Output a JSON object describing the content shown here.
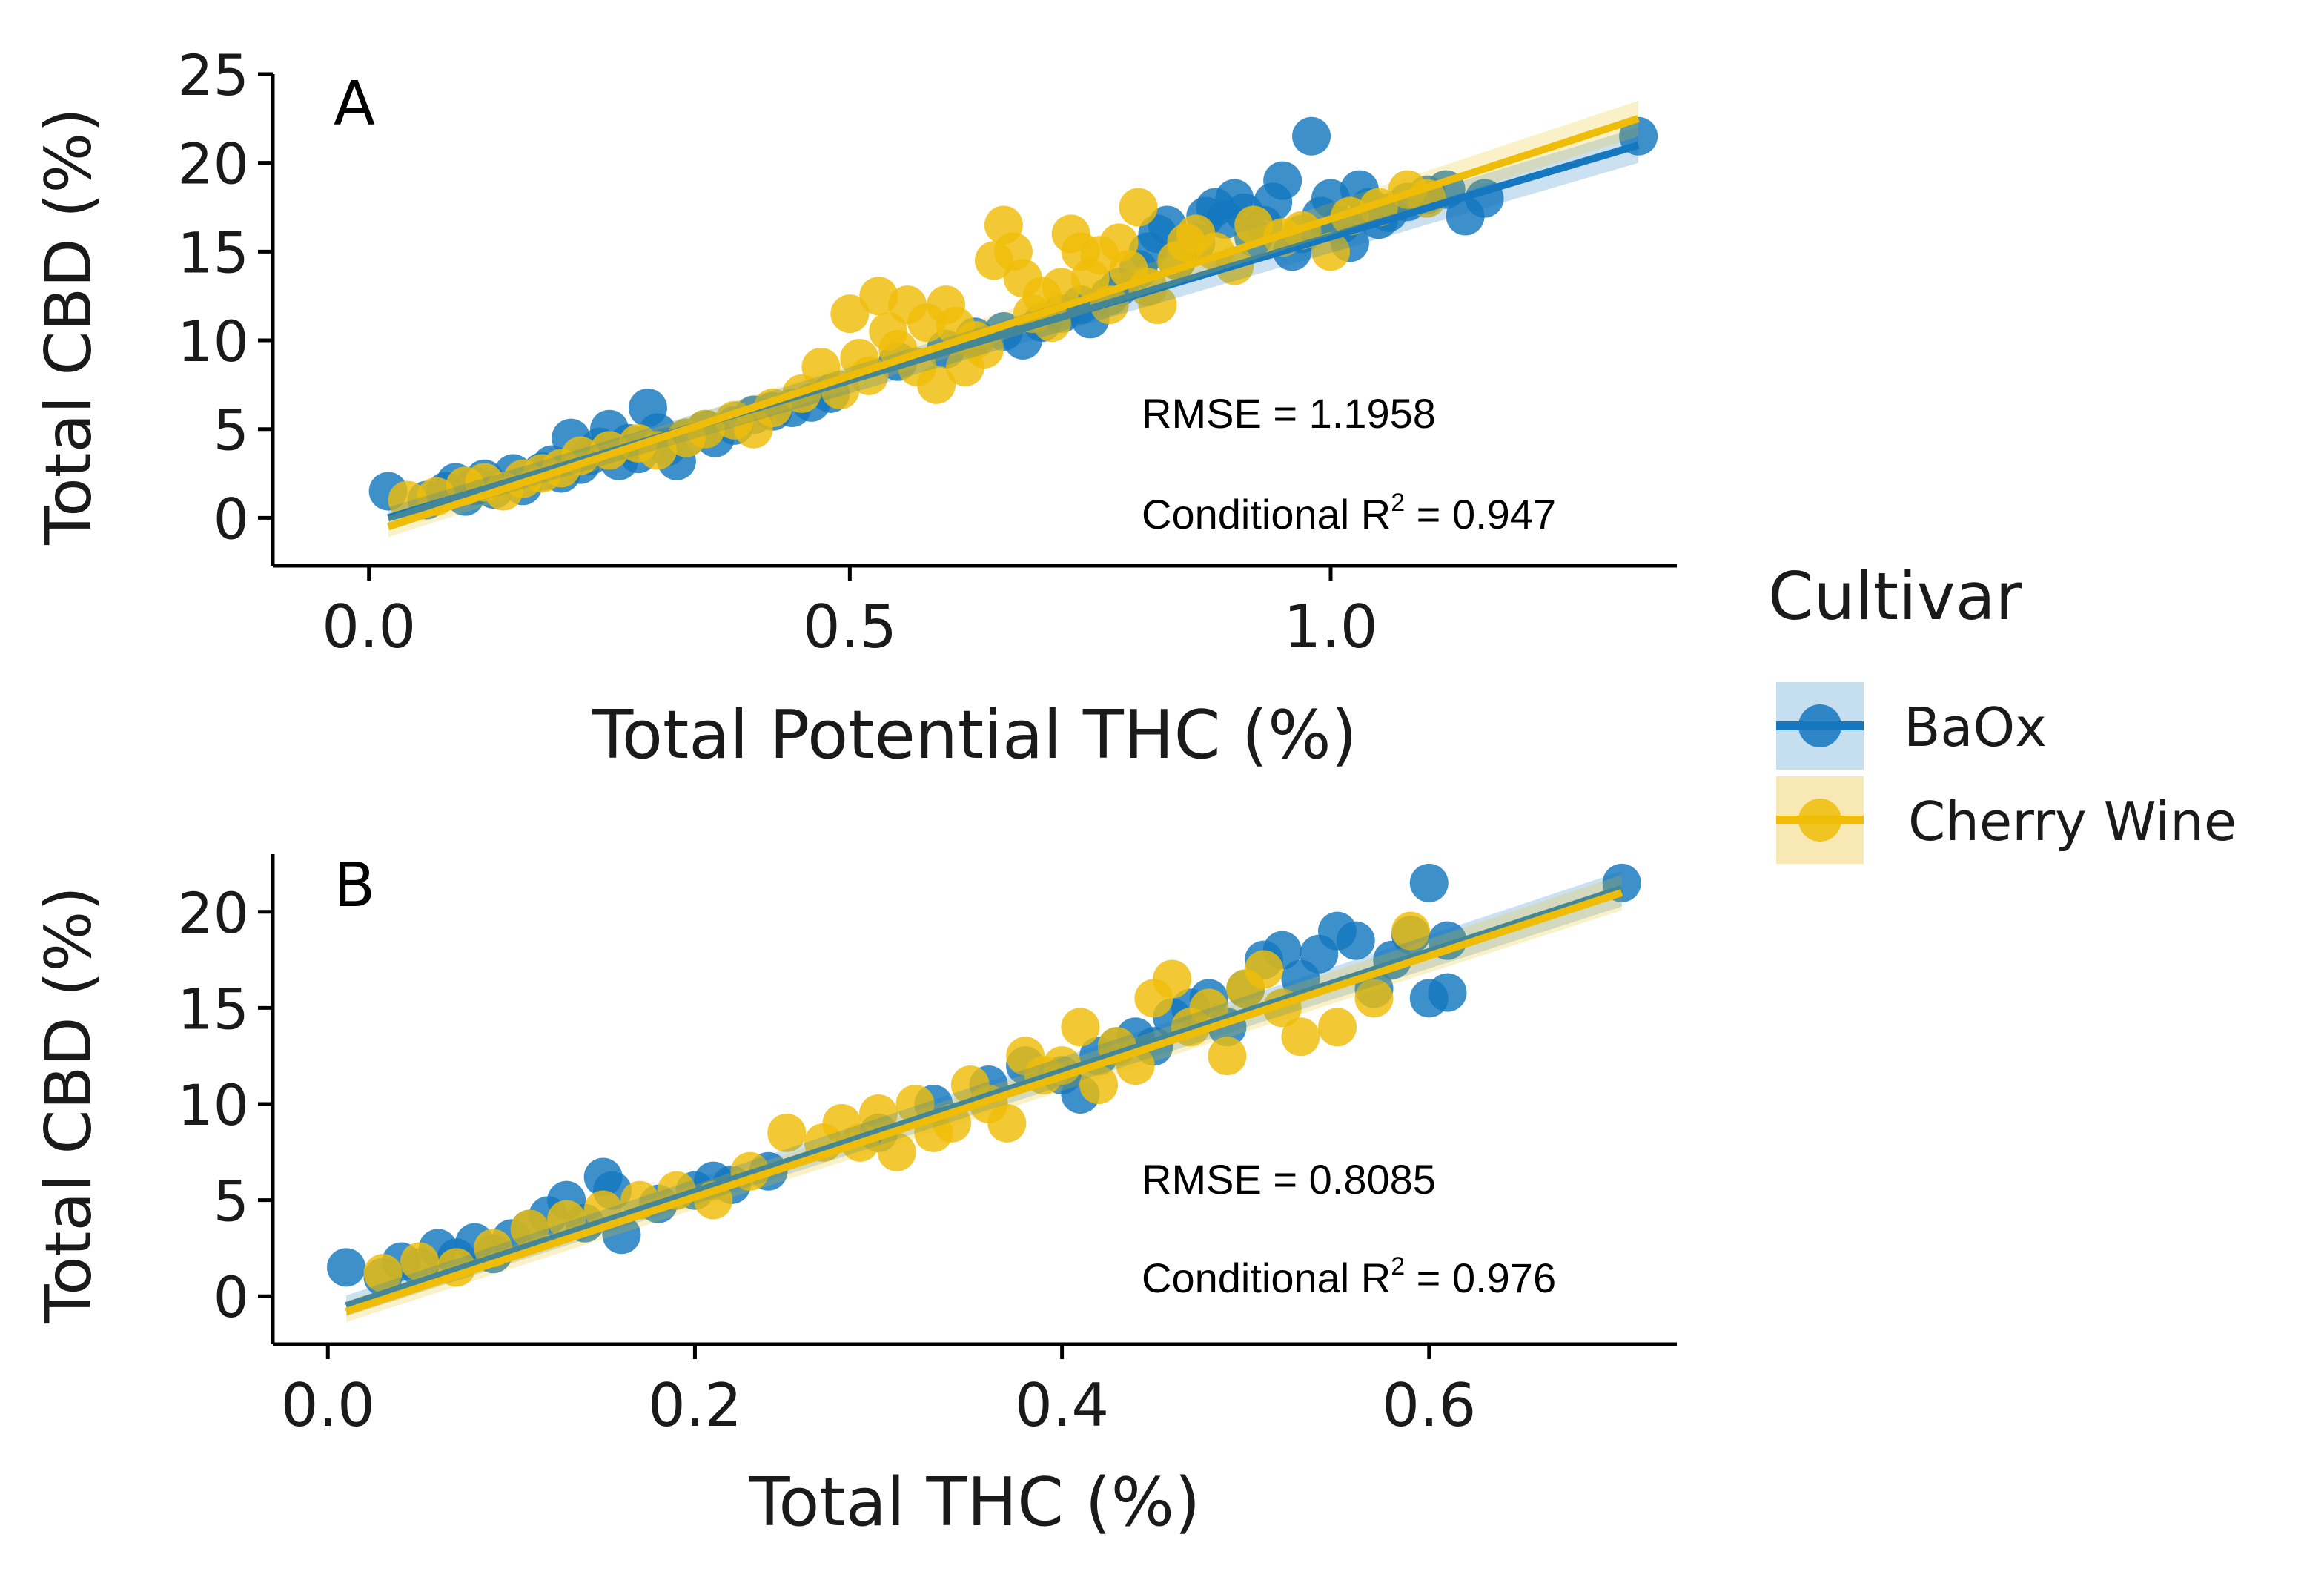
{
  "legend": {
    "title": "Cultivar",
    "items": [
      {
        "label": "BaOx",
        "color": "#1477bf",
        "fill": "#c6dff0"
      },
      {
        "label": "Cherry Wine",
        "color": "#efbd08",
        "fill": "#f8e9b4"
      }
    ]
  },
  "chart_data": [
    {
      "panel_label": "A",
      "type": "scatter",
      "xlabel": "Total Potential THC (%)",
      "ylabel": "Total CBD (%)",
      "xlim": [
        -0.1,
        1.36
      ],
      "ylim": [
        -2.7,
        25
      ],
      "x_ticks": [
        0.0,
        0.5,
        1.0
      ],
      "x_tick_labels": [
        "0.0",
        "0.5",
        "1.0"
      ],
      "y_ticks": [
        0,
        5,
        10,
        15,
        20,
        25
      ],
      "y_tick_labels": [
        "0",
        "5",
        "10",
        "15",
        "20",
        "25"
      ],
      "rmse_text": "RMSE = 1.1958",
      "r2_prefix": "Conditional R",
      "r2_sup": "2",
      "r2_suffix": " = 0.947",
      "series": [
        {
          "name": "BaOx",
          "color": "#1477bf",
          "fit": {
            "x": [
              0.02,
              1.32
            ],
            "y": [
              0.0,
              21.0
            ]
          },
          "points": [
            [
              0.02,
              1.5
            ],
            [
              0.06,
              1.0
            ],
            [
              0.08,
              1.5
            ],
            [
              0.09,
              2.0
            ],
            [
              0.1,
              1.2
            ],
            [
              0.11,
              1.8
            ],
            [
              0.12,
              2.2
            ],
            [
              0.13,
              1.6
            ],
            [
              0.15,
              2.5
            ],
            [
              0.16,
              1.8
            ],
            [
              0.18,
              2.6
            ],
            [
              0.19,
              3.0
            ],
            [
              0.2,
              2.5
            ],
            [
              0.21,
              4.5
            ],
            [
              0.22,
              3.0
            ],
            [
              0.23,
              3.5
            ],
            [
              0.24,
              4.0
            ],
            [
              0.25,
              5.0
            ],
            [
              0.26,
              3.2
            ],
            [
              0.27,
              4.2
            ],
            [
              0.28,
              3.6
            ],
            [
              0.29,
              6.2
            ],
            [
              0.3,
              4.8
            ],
            [
              0.31,
              4.0
            ],
            [
              0.32,
              3.2
            ],
            [
              0.33,
              4.5
            ],
            [
              0.35,
              5.0
            ],
            [
              0.36,
              4.5
            ],
            [
              0.38,
              5.2
            ],
            [
              0.4,
              5.8
            ],
            [
              0.42,
              6.0
            ],
            [
              0.44,
              6.2
            ],
            [
              0.46,
              6.5
            ],
            [
              0.48,
              7.0
            ],
            [
              0.55,
              8.8
            ],
            [
              0.6,
              9.5
            ],
            [
              0.63,
              10.2
            ],
            [
              0.66,
              10.5
            ],
            [
              0.68,
              10.0
            ],
            [
              0.7,
              11.0
            ],
            [
              0.72,
              11.5
            ],
            [
              0.74,
              12.0
            ],
            [
              0.75,
              11.2
            ],
            [
              0.77,
              12.5
            ],
            [
              0.78,
              13.0
            ],
            [
              0.8,
              14.0
            ],
            [
              0.81,
              15.0
            ],
            [
              0.82,
              16.0
            ],
            [
              0.83,
              16.5
            ],
            [
              0.84,
              14.5
            ],
            [
              0.86,
              15.5
            ],
            [
              0.87,
              17.0
            ],
            [
              0.88,
              17.5
            ],
            [
              0.89,
              16.8
            ],
            [
              0.9,
              18.0
            ],
            [
              0.91,
              17.2
            ],
            [
              0.92,
              15.8
            ],
            [
              0.93,
              16.5
            ],
            [
              0.94,
              17.8
            ],
            [
              0.95,
              19.0
            ],
            [
              0.96,
              15.0
            ],
            [
              0.97,
              16.0
            ],
            [
              0.98,
              21.5
            ],
            [
              0.99,
              17.0
            ],
            [
              1.0,
              18.0
            ],
            [
              1.01,
              16.5
            ],
            [
              1.02,
              15.5
            ],
            [
              1.03,
              18.5
            ],
            [
              1.04,
              17.5
            ],
            [
              1.05,
              16.8
            ],
            [
              1.06,
              17.2
            ],
            [
              1.08,
              17.8
            ],
            [
              1.1,
              18.2
            ],
            [
              1.12,
              18.5
            ],
            [
              1.14,
              17.0
            ],
            [
              1.16,
              18.0
            ],
            [
              1.32,
              21.5
            ]
          ]
        },
        {
          "name": "Cherry Wine",
          "color": "#efbd08",
          "fit": {
            "x": [
              0.02,
              1.32
            ],
            "y": [
              -0.5,
              22.5
            ]
          },
          "points": [
            [
              0.04,
              1.0
            ],
            [
              0.07,
              1.2
            ],
            [
              0.1,
              1.8
            ],
            [
              0.12,
              2.0
            ],
            [
              0.14,
              1.5
            ],
            [
              0.16,
              2.2
            ],
            [
              0.18,
              2.5
            ],
            [
              0.2,
              2.8
            ],
            [
              0.22,
              3.5
            ],
            [
              0.25,
              3.8
            ],
            [
              0.28,
              4.2
            ],
            [
              0.3,
              3.8
            ],
            [
              0.33,
              4.5
            ],
            [
              0.35,
              5.0
            ],
            [
              0.38,
              5.5
            ],
            [
              0.4,
              5.0
            ],
            [
              0.42,
              6.2
            ],
            [
              0.45,
              7.0
            ],
            [
              0.47,
              8.5
            ],
            [
              0.49,
              7.2
            ],
            [
              0.5,
              11.5
            ],
            [
              0.51,
              9.0
            ],
            [
              0.52,
              8.0
            ],
            [
              0.53,
              12.5
            ],
            [
              0.54,
              10.5
            ],
            [
              0.55,
              9.5
            ],
            [
              0.56,
              12.0
            ],
            [
              0.57,
              8.5
            ],
            [
              0.58,
              11.0
            ],
            [
              0.59,
              7.5
            ],
            [
              0.6,
              12.0
            ],
            [
              0.61,
              10.8
            ],
            [
              0.62,
              8.5
            ],
            [
              0.63,
              10.0
            ],
            [
              0.64,
              9.5
            ],
            [
              0.65,
              14.5
            ],
            [
              0.66,
              16.5
            ],
            [
              0.67,
              15.0
            ],
            [
              0.68,
              13.5
            ],
            [
              0.69,
              11.5
            ],
            [
              0.7,
              12.5
            ],
            [
              0.71,
              11.0
            ],
            [
              0.72,
              13.0
            ],
            [
              0.73,
              16.0
            ],
            [
              0.74,
              15.0
            ],
            [
              0.75,
              13.5
            ],
            [
              0.76,
              14.8
            ],
            [
              0.77,
              12.0
            ],
            [
              0.78,
              15.5
            ],
            [
              0.79,
              14.0
            ],
            [
              0.8,
              17.5
            ],
            [
              0.81,
              13.0
            ],
            [
              0.82,
              12.0
            ],
            [
              0.84,
              14.5
            ],
            [
              0.85,
              15.5
            ],
            [
              0.86,
              16.0
            ],
            [
              0.88,
              15.0
            ],
            [
              0.9,
              14.2
            ],
            [
              0.92,
              16.5
            ],
            [
              0.95,
              15.8
            ],
            [
              0.97,
              16.2
            ],
            [
              1.0,
              15.0
            ],
            [
              1.02,
              17.0
            ],
            [
              1.05,
              17.5
            ],
            [
              1.08,
              18.5
            ],
            [
              1.1,
              18.0
            ]
          ]
        }
      ]
    },
    {
      "panel_label": "B",
      "type": "scatter",
      "xlabel": "Total THC (%)",
      "ylabel": "Total CBD (%)",
      "xlim": [
        -0.03,
        0.735
      ],
      "ylim": [
        -2.5,
        23
      ],
      "x_ticks": [
        0.0,
        0.2,
        0.4,
        0.6
      ],
      "x_tick_labels": [
        "0.0",
        "0.2",
        "0.4",
        "0.6"
      ],
      "y_ticks": [
        0,
        5,
        10,
        15,
        20
      ],
      "y_tick_labels": [
        "0",
        "5",
        "10",
        "15",
        "20"
      ],
      "rmse_text": "RMSE = 0.8085",
      "r2_prefix": "Conditional R",
      "r2_sup": "2",
      "r2_suffix": " = 0.976",
      "series": [
        {
          "name": "BaOx",
          "color": "#1477bf",
          "fit": {
            "x": [
              0.01,
              0.705
            ],
            "y": [
              -0.5,
              21.2
            ]
          },
          "points": [
            [
              0.01,
              1.5
            ],
            [
              0.03,
              1.0
            ],
            [
              0.04,
              1.8
            ],
            [
              0.05,
              1.5
            ],
            [
              0.06,
              2.5
            ],
            [
              0.07,
              2.0
            ],
            [
              0.08,
              2.8
            ],
            [
              0.09,
              2.2
            ],
            [
              0.1,
              3.0
            ],
            [
              0.11,
              3.5
            ],
            [
              0.12,
              4.2
            ],
            [
              0.13,
              5.0
            ],
            [
              0.14,
              3.8
            ],
            [
              0.15,
              6.2
            ],
            [
              0.155,
              5.5
            ],
            [
              0.16,
              3.2
            ],
            [
              0.18,
              4.8
            ],
            [
              0.2,
              5.5
            ],
            [
              0.21,
              6.0
            ],
            [
              0.22,
              5.8
            ],
            [
              0.24,
              6.5
            ],
            [
              0.3,
              8.5
            ],
            [
              0.33,
              10.0
            ],
            [
              0.36,
              11.0
            ],
            [
              0.38,
              12.0
            ],
            [
              0.4,
              11.5
            ],
            [
              0.41,
              10.5
            ],
            [
              0.42,
              12.5
            ],
            [
              0.43,
              13.0
            ],
            [
              0.44,
              13.5
            ],
            [
              0.45,
              13.0
            ],
            [
              0.46,
              14.5
            ],
            [
              0.47,
              15.0
            ],
            [
              0.48,
              15.5
            ],
            [
              0.49,
              14.0
            ],
            [
              0.5,
              16.0
            ],
            [
              0.51,
              17.5
            ],
            [
              0.52,
              18.0
            ],
            [
              0.53,
              16.5
            ],
            [
              0.54,
              17.8
            ],
            [
              0.55,
              19.0
            ],
            [
              0.56,
              18.5
            ],
            [
              0.57,
              16.0
            ],
            [
              0.58,
              17.5
            ],
            [
              0.59,
              18.8
            ],
            [
              0.6,
              21.5
            ],
            [
              0.6,
              15.5
            ],
            [
              0.61,
              18.5
            ],
            [
              0.61,
              15.8
            ],
            [
              0.705,
              21.5
            ]
          ]
        },
        {
          "name": "Cherry Wine",
          "color": "#efbd08",
          "fit": {
            "x": [
              0.01,
              0.705
            ],
            "y": [
              -0.8,
              21.0
            ]
          },
          "points": [
            [
              0.03,
              1.2
            ],
            [
              0.05,
              1.8
            ],
            [
              0.07,
              1.5
            ],
            [
              0.09,
              2.5
            ],
            [
              0.11,
              3.5
            ],
            [
              0.13,
              4.0
            ],
            [
              0.15,
              4.5
            ],
            [
              0.17,
              5.0
            ],
            [
              0.19,
              5.5
            ],
            [
              0.21,
              5.0
            ],
            [
              0.23,
              6.5
            ],
            [
              0.25,
              8.5
            ],
            [
              0.27,
              8.0
            ],
            [
              0.28,
              9.0
            ],
            [
              0.29,
              8.0
            ],
            [
              0.3,
              9.5
            ],
            [
              0.31,
              7.5
            ],
            [
              0.32,
              10.0
            ],
            [
              0.33,
              8.5
            ],
            [
              0.34,
              9.0
            ],
            [
              0.35,
              11.0
            ],
            [
              0.36,
              10.0
            ],
            [
              0.37,
              9.0
            ],
            [
              0.38,
              12.5
            ],
            [
              0.39,
              11.5
            ],
            [
              0.4,
              12.0
            ],
            [
              0.41,
              14.0
            ],
            [
              0.42,
              11.0
            ],
            [
              0.43,
              13.0
            ],
            [
              0.44,
              12.0
            ],
            [
              0.45,
              15.5
            ],
            [
              0.46,
              16.5
            ],
            [
              0.47,
              14.0
            ],
            [
              0.48,
              15.0
            ],
            [
              0.49,
              12.5
            ],
            [
              0.5,
              16.0
            ],
            [
              0.51,
              17.0
            ],
            [
              0.52,
              15.0
            ],
            [
              0.53,
              13.5
            ],
            [
              0.55,
              14.0
            ],
            [
              0.57,
              15.5
            ],
            [
              0.59,
              19.0
            ]
          ]
        }
      ]
    }
  ]
}
